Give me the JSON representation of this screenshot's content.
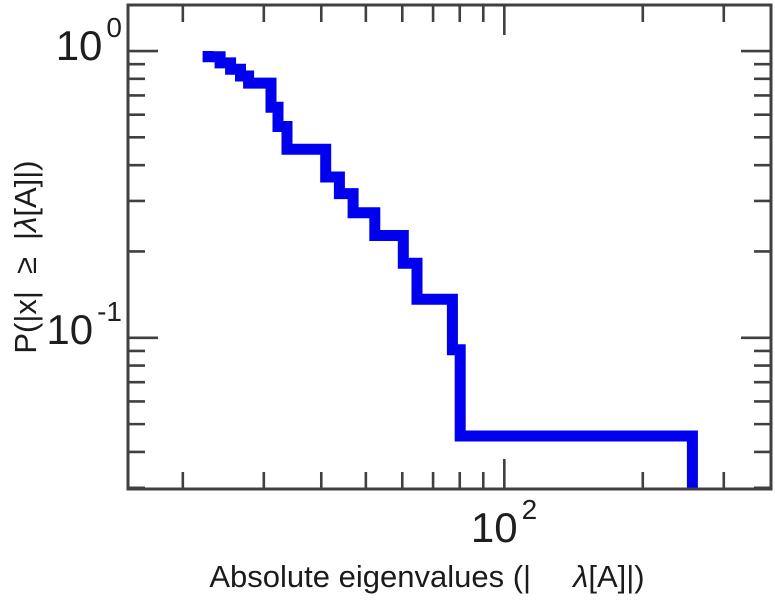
{
  "figure": {
    "background": "#ffffff",
    "axis_color": "#404040",
    "text_color": "#1b1b1b",
    "line_color": "#0000ee"
  },
  "chart_data": {
    "type": "line",
    "subtype": "empirical-ccdf-staircase",
    "title": "",
    "xlabel": "Absolute eigenvalues (|λ[A]|)",
    "ylabel": "P(|x| ≥ |λ[A]|)",
    "xlabel_parts": {
      "p1": "Absolute eigenvalues (|",
      "p2": "λ",
      "p3": "[A]|)"
    },
    "ylabel_parts": {
      "p1": "P(|x|",
      "p2": "≥",
      "p3": "|",
      "p4": "λ",
      "p5": "[A]|)"
    },
    "xscale": "log",
    "yscale": "log",
    "xlim": [
      15.2,
      380
    ],
    "ylim": [
      0.0297,
      1.447
    ],
    "grid": false,
    "legend": "none",
    "ticks_inward_mirrored": true,
    "x_major_ticks": [
      100
    ],
    "x_minor_ticks": [
      20,
      30,
      40,
      50,
      60,
      70,
      80,
      90,
      200,
      300
    ],
    "y_major_ticks": [
      1,
      0.1
    ],
    "y_minor_ticks": [
      0.9,
      0.8,
      0.7,
      0.6,
      0.5,
      0.4,
      0.3,
      0.2,
      0.09,
      0.08,
      0.07,
      0.06,
      0.05,
      0.04,
      0.03
    ],
    "x_tick_labels": [
      {
        "base": "10",
        "exp": "2"
      }
    ],
    "y_tick_labels": [
      {
        "base": "10",
        "exp": "0"
      },
      {
        "base": "10",
        "exp": "-1"
      }
    ],
    "n_samples": 22,
    "eigenvalues_abs_sorted": [
      22.7,
      24.1,
      25.4,
      26.7,
      27.8,
      31.1,
      31.1,
      31.1,
      32.2,
      32.2,
      33.7,
      33.7,
      40.9,
      40.9,
      43.8,
      46.9,
      52.3,
      60.3,
      64.6,
      77.1,
      80.2,
      256.4
    ],
    "ccdf_levels_after_each_drop": [
      0.9545,
      0.9091,
      0.8636,
      0.8182,
      0.7727,
      0.6364,
      0.5455,
      0.4545,
      0.3636,
      0.3182,
      0.2727,
      0.2273,
      0.1818,
      0.1364,
      0.0909,
      0.0455,
      0.0
    ]
  }
}
